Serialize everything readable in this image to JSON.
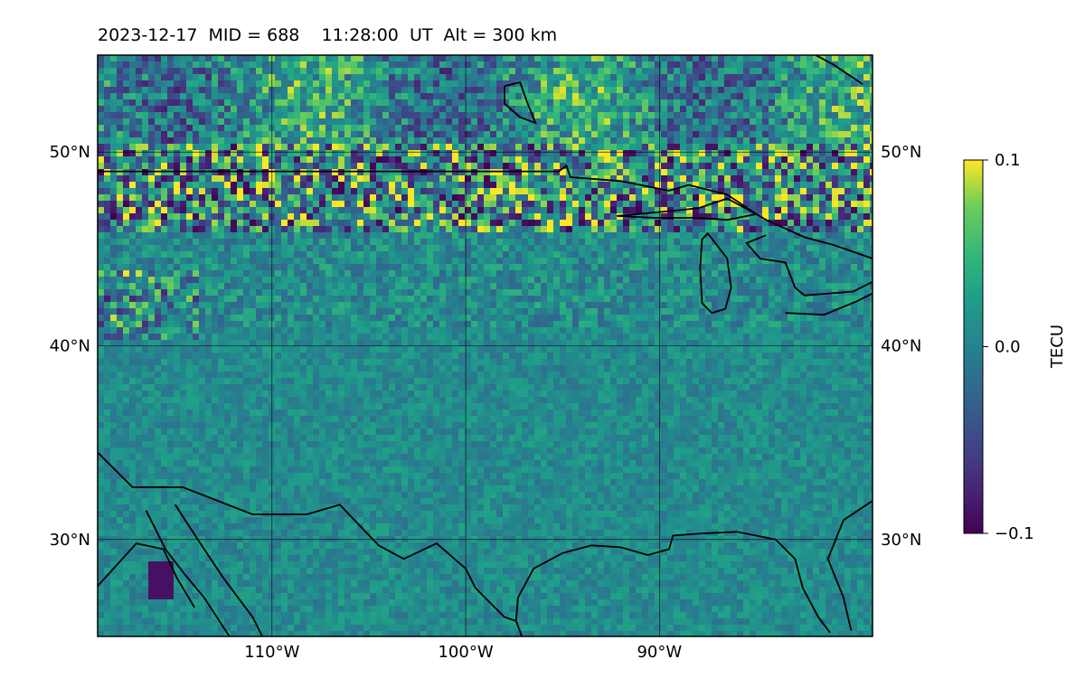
{
  "title": "2023-12-17  MID = 688    11:28:00  UT  Alt = 300 km",
  "map": {
    "lon_range": [
      -119,
      -79
    ],
    "lat_range": [
      25,
      55
    ],
    "lat_ticks": [
      {
        "value": 50,
        "label": "50°N"
      },
      {
        "value": 40,
        "label": "40°N"
      },
      {
        "value": 30,
        "label": "30°N"
      }
    ],
    "lon_ticks": [
      {
        "value": -110,
        "label": "110°W"
      },
      {
        "value": -100,
        "label": "100°W"
      },
      {
        "value": -90,
        "label": "90°W"
      }
    ],
    "gridlines": true,
    "coastlines": true
  },
  "colorbar": {
    "label": "TECU",
    "colormap": "viridis",
    "vmin": -0.1,
    "vmax": 0.1,
    "ticks": [
      "0.1",
      "0.0",
      "−0.1"
    ]
  }
}
